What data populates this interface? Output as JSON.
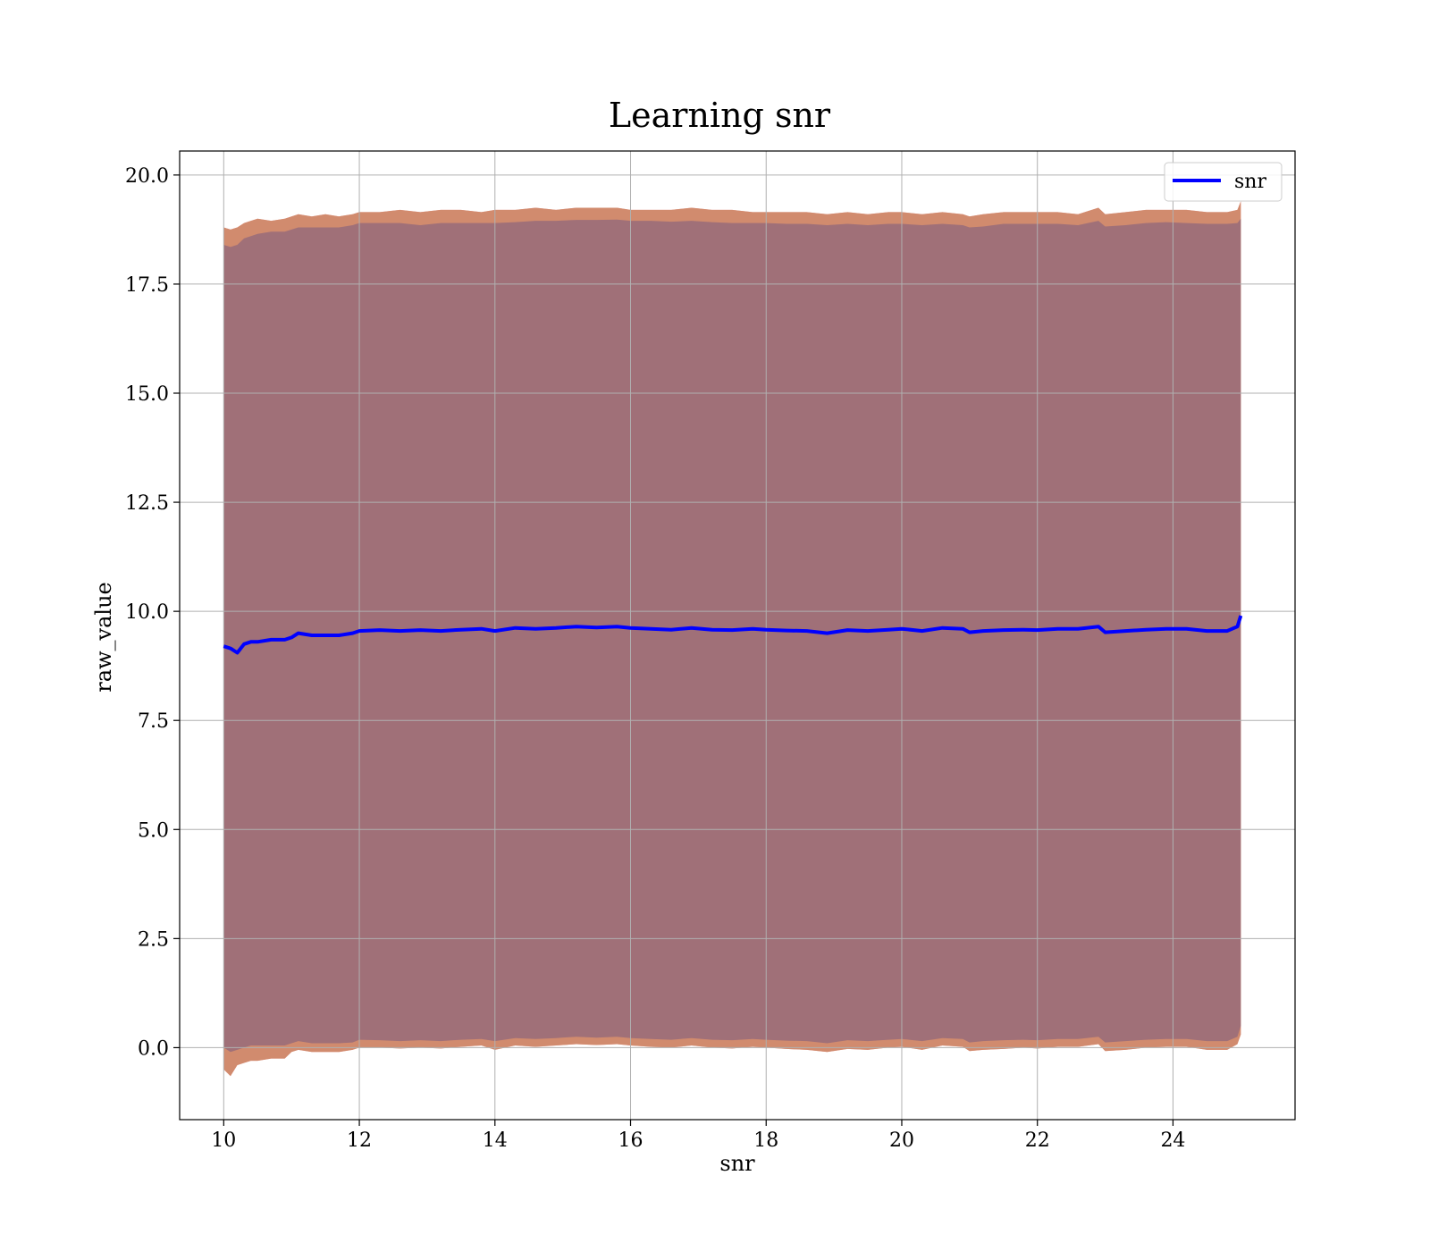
{
  "chart_data": {
    "type": "line",
    "title": "Learning snr",
    "xlabel": "snr",
    "ylabel": "raw_value",
    "xlim": [
      9.35,
      25.8
    ],
    "ylim": [
      -1.65,
      20.55
    ],
    "xticks": [
      10,
      12,
      14,
      16,
      18,
      20,
      22,
      24
    ],
    "xtick_labels": [
      "10",
      "12",
      "14",
      "16",
      "18",
      "20",
      "22",
      "24"
    ],
    "yticks": [
      0.0,
      2.5,
      5.0,
      7.5,
      10.0,
      12.5,
      15.0,
      17.5,
      20.0
    ],
    "ytick_labels": [
      "0.0",
      "2.5",
      "5.0",
      "7.5",
      "10.0",
      "12.5",
      "15.0",
      "17.5",
      "20.0"
    ],
    "grid": true,
    "legend": {
      "position": "top-right",
      "entries": [
        "snr"
      ]
    },
    "colors": {
      "line": "#0000ff",
      "outer_band": "#f08080",
      "middle_band": "#cd8b6a",
      "inner_band": "#a07078",
      "grid": "#b0b0b0"
    },
    "series": [
      {
        "name": "snr",
        "x": [
          10.0,
          10.1,
          10.2,
          10.3,
          10.4,
          10.5,
          10.7,
          10.9,
          11.0,
          11.1,
          11.3,
          11.5,
          11.7,
          11.9,
          12.0,
          12.3,
          12.6,
          12.9,
          13.2,
          13.5,
          13.8,
          14.0,
          14.3,
          14.6,
          14.9,
          15.2,
          15.5,
          15.8,
          16.0,
          16.3,
          16.6,
          16.9,
          17.2,
          17.5,
          17.8,
          18.0,
          18.3,
          18.6,
          18.9,
          19.2,
          19.5,
          19.8,
          20.0,
          20.3,
          20.6,
          20.9,
          21.0,
          21.2,
          21.5,
          21.8,
          22.0,
          22.3,
          22.6,
          22.9,
          23.0,
          23.3,
          23.6,
          23.9,
          24.2,
          24.5,
          24.8,
          24.95,
          25.0
        ],
        "y": [
          9.2,
          9.15,
          9.05,
          9.25,
          9.3,
          9.3,
          9.35,
          9.35,
          9.4,
          9.5,
          9.45,
          9.45,
          9.45,
          9.5,
          9.55,
          9.57,
          9.55,
          9.57,
          9.55,
          9.58,
          9.6,
          9.55,
          9.62,
          9.6,
          9.62,
          9.65,
          9.63,
          9.65,
          9.62,
          9.6,
          9.58,
          9.62,
          9.58,
          9.57,
          9.6,
          9.58,
          9.56,
          9.55,
          9.5,
          9.57,
          9.55,
          9.58,
          9.6,
          9.55,
          9.62,
          9.6,
          9.52,
          9.55,
          9.57,
          9.58,
          9.57,
          9.6,
          9.6,
          9.65,
          9.52,
          9.55,
          9.58,
          9.6,
          9.6,
          9.55,
          9.55,
          9.65,
          9.9
        ],
        "band_outer_upper": [
          18.8,
          18.75,
          18.8,
          18.9,
          18.95,
          19.0,
          18.95,
          19.0,
          19.05,
          19.1,
          19.05,
          19.1,
          19.05,
          19.1,
          19.15,
          19.15,
          19.2,
          19.15,
          19.2,
          19.2,
          19.15,
          19.2,
          19.2,
          19.25,
          19.2,
          19.25,
          19.25,
          19.25,
          19.2,
          19.2,
          19.2,
          19.25,
          19.2,
          19.2,
          19.15,
          19.15,
          19.15,
          19.15,
          19.1,
          19.15,
          19.1,
          19.15,
          19.15,
          19.1,
          19.15,
          19.1,
          19.05,
          19.1,
          19.15,
          19.15,
          19.15,
          19.15,
          19.1,
          19.25,
          19.1,
          19.15,
          19.2,
          19.2,
          19.2,
          19.15,
          19.15,
          19.2,
          19.4
        ],
        "band_inner_upper": [
          18.4,
          18.35,
          18.4,
          18.55,
          18.6,
          18.65,
          18.7,
          18.7,
          18.75,
          18.8,
          18.8,
          18.8,
          18.8,
          18.85,
          18.9,
          18.9,
          18.9,
          18.85,
          18.9,
          18.9,
          18.9,
          18.9,
          18.92,
          18.95,
          18.95,
          18.97,
          18.97,
          18.98,
          18.95,
          18.95,
          18.93,
          18.95,
          18.92,
          18.9,
          18.9,
          18.9,
          18.88,
          18.88,
          18.85,
          18.88,
          18.85,
          18.88,
          18.88,
          18.85,
          18.88,
          18.85,
          18.8,
          18.82,
          18.88,
          18.88,
          18.88,
          18.88,
          18.85,
          18.95,
          18.82,
          18.85,
          18.9,
          18.92,
          18.9,
          18.88,
          18.88,
          18.9,
          19.0
        ],
        "band_inner_lower": [
          0.0,
          -0.1,
          -0.05,
          0.0,
          0.05,
          0.05,
          0.05,
          0.05,
          0.1,
          0.15,
          0.1,
          0.1,
          0.1,
          0.12,
          0.18,
          0.17,
          0.15,
          0.17,
          0.15,
          0.18,
          0.2,
          0.15,
          0.22,
          0.2,
          0.22,
          0.25,
          0.23,
          0.25,
          0.22,
          0.2,
          0.18,
          0.22,
          0.18,
          0.17,
          0.2,
          0.18,
          0.16,
          0.15,
          0.1,
          0.17,
          0.15,
          0.18,
          0.2,
          0.15,
          0.22,
          0.2,
          0.12,
          0.15,
          0.17,
          0.18,
          0.17,
          0.2,
          0.2,
          0.25,
          0.12,
          0.15,
          0.18,
          0.2,
          0.2,
          0.15,
          0.15,
          0.25,
          0.5
        ],
        "band_outer_lower": [
          -0.5,
          -0.65,
          -0.4,
          -0.35,
          -0.3,
          -0.3,
          -0.25,
          -0.25,
          -0.1,
          -0.05,
          -0.1,
          -0.1,
          -0.1,
          -0.05,
          0.0,
          0.0,
          -0.02,
          0.0,
          -0.02,
          0.02,
          0.05,
          -0.05,
          0.05,
          0.02,
          0.05,
          0.08,
          0.06,
          0.08,
          0.05,
          0.02,
          0.0,
          0.05,
          0.0,
          -0.02,
          0.02,
          0.0,
          -0.03,
          -0.05,
          -0.1,
          -0.03,
          -0.05,
          0.0,
          0.02,
          -0.05,
          0.05,
          0.02,
          -0.08,
          -0.05,
          -0.03,
          0.0,
          -0.02,
          0.02,
          0.02,
          0.08,
          -0.08,
          -0.05,
          0.0,
          0.02,
          0.02,
          -0.05,
          -0.05,
          0.08,
          0.3
        ]
      }
    ]
  }
}
